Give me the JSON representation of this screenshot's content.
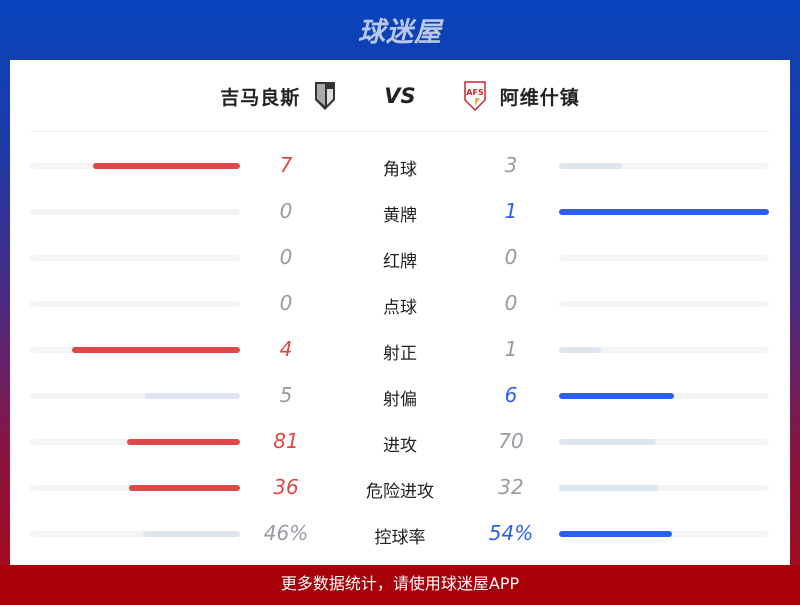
{
  "brand": {
    "logo_text": "球迷屋"
  },
  "match": {
    "home": "吉马良斯",
    "away": "阿维什镇",
    "vs": "VS",
    "away_badge_text": "AFS"
  },
  "colors": {
    "home": "#e04848",
    "away": "#2c5ef0",
    "loser": "#dfe5ee",
    "track": "#f3f4f6",
    "neutral_text": "#9a9aa6"
  },
  "stats": [
    {
      "label": "角球",
      "home": "7",
      "away": "3",
      "home_val": 7,
      "away_val": 3
    },
    {
      "label": "黄牌",
      "home": "0",
      "away": "1",
      "home_val": 0,
      "away_val": 1
    },
    {
      "label": "红牌",
      "home": "0",
      "away": "0",
      "home_val": 0,
      "away_val": 0
    },
    {
      "label": "点球",
      "home": "0",
      "away": "0",
      "home_val": 0,
      "away_val": 0
    },
    {
      "label": "射正",
      "home": "4",
      "away": "1",
      "home_val": 4,
      "away_val": 1
    },
    {
      "label": "射偏",
      "home": "5",
      "away": "6",
      "home_val": 5,
      "away_val": 6
    },
    {
      "label": "进攻",
      "home": "81",
      "away": "70",
      "home_val": 81,
      "away_val": 70
    },
    {
      "label": "危险进攻",
      "home": "36",
      "away": "32",
      "home_val": 36,
      "away_val": 32
    },
    {
      "label": "控球率",
      "home": "46%",
      "away": "54%",
      "home_val": 46,
      "away_val": 54
    }
  ],
  "footer": {
    "text": "更多数据统计，请使用球迷屋APP"
  }
}
